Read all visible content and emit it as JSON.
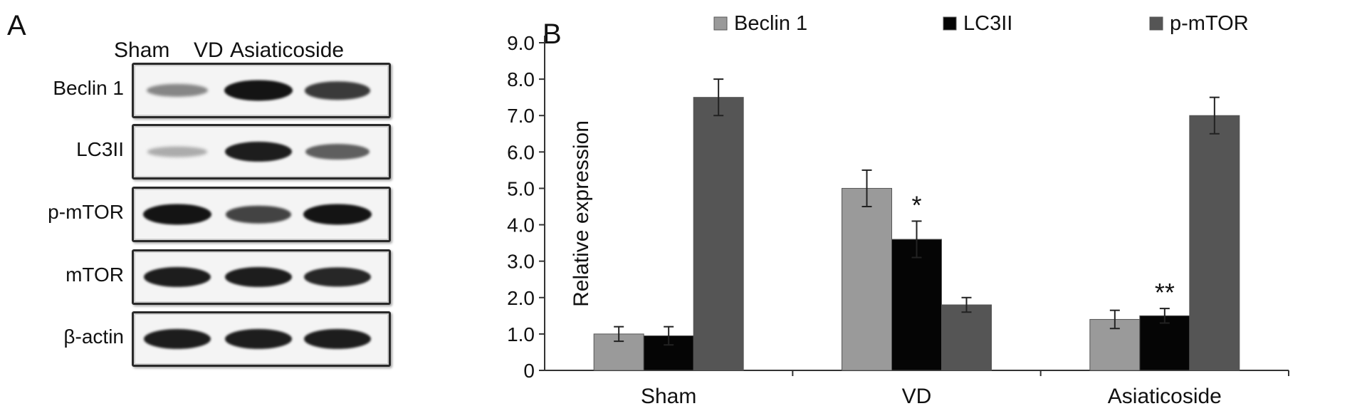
{
  "panels": {
    "a_label": "A",
    "b_label": "B"
  },
  "blot": {
    "columns": [
      "Sham",
      "VD",
      "Asiaticoside"
    ],
    "rows": [
      {
        "label": "Beclin 1",
        "intensity": [
          0.35,
          0.95,
          0.75
        ]
      },
      {
        "label": "LC3II",
        "intensity": [
          0.15,
          0.9,
          0.55
        ]
      },
      {
        "label": "p-mTOR",
        "intensity": [
          0.95,
          0.7,
          0.95
        ]
      },
      {
        "label": "mTOR",
        "intensity": [
          0.9,
          0.9,
          0.85
        ]
      },
      {
        "label": "β-actin",
        "intensity": [
          0.9,
          0.9,
          0.9
        ]
      }
    ]
  },
  "colors": {
    "beclin": "#9a9a9a",
    "lc3": "#050505",
    "mtor": "#555555"
  },
  "chart_data": {
    "type": "bar",
    "categories": [
      "Sham",
      "VD",
      "Asiaticoside"
    ],
    "series": [
      {
        "name": "Beclin 1",
        "values": [
          1.0,
          5.0,
          1.4
        ],
        "errors": [
          0.2,
          0.5,
          0.25
        ]
      },
      {
        "name": "LC3II",
        "values": [
          0.95,
          3.6,
          1.5
        ],
        "errors": [
          0.25,
          0.5,
          0.2
        ]
      },
      {
        "name": "p-mTOR",
        "values": [
          7.5,
          1.8,
          7.0
        ],
        "errors": [
          0.5,
          0.2,
          0.5
        ]
      }
    ],
    "annotations": [
      {
        "series": 1,
        "category": 1,
        "text": "*"
      },
      {
        "series": 1,
        "category": 2,
        "text": "**"
      }
    ],
    "ylabel": "Relative expression",
    "xlabel": "",
    "ylim": [
      0,
      9
    ],
    "yticks": [
      "0",
      "1.0",
      "2.0",
      "3.0",
      "4.0",
      "5.0",
      "6.0",
      "7.0",
      "8.0",
      "9.0"
    ],
    "legend": "top",
    "grid": false
  }
}
